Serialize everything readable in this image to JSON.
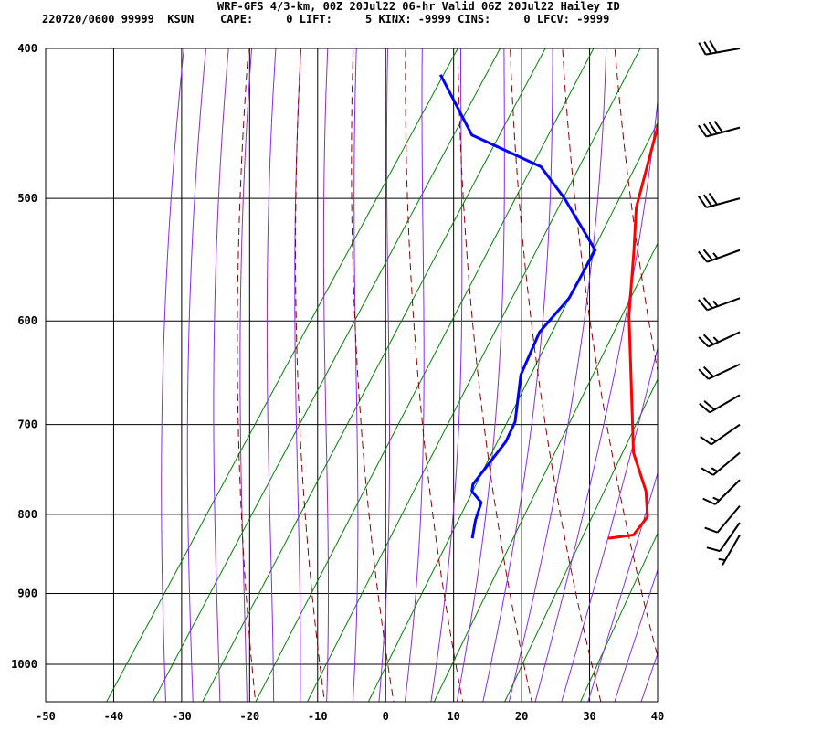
{
  "header": {
    "line1": "WRF-GFS 4/3-km, 00Z 20Jul22 06-hr Valid 06Z 20Jul22 Hailey ID",
    "line2": "220720/0600 99999  KSUN    CAPE:     0 LIFT:     5 KINX: -9999 CINS:     0 LFCV: -9999"
  },
  "colors": {
    "temperature": "#ff0000",
    "dewpoint": "#0000ff",
    "isotherm_grid": "#000000",
    "dry_adiabat": "#8b0000",
    "moist_adiabat": "#8a2be2",
    "mixing_ratio": "#008000"
  },
  "chart_data": {
    "type": "line",
    "subtype": "skew-T log-P sounding",
    "x_ticks": [
      -50,
      -40,
      -30,
      -20,
      -10,
      0,
      10,
      20,
      30,
      40
    ],
    "y_ticks": [
      400,
      500,
      600,
      700,
      800,
      900,
      1000
    ],
    "xlim": [
      -50,
      40
    ],
    "ylim": [
      1050,
      400
    ],
    "y_scale": "log",
    "grid": true,
    "series": [
      {
        "key": "temperature",
        "points": [
          [
            -17.9,
            403
          ],
          [
            -13.6,
            445
          ],
          [
            -10.5,
            485
          ],
          [
            -8.9,
            507
          ],
          [
            -5.3,
            540
          ],
          [
            0,
            595
          ],
          [
            6.8,
            660
          ],
          [
            13.4,
            730
          ],
          [
            18.8,
            773
          ],
          [
            21.4,
            803
          ],
          [
            21.0,
            825
          ],
          [
            17.6,
            829
          ]
        ]
      },
      {
        "key": "dewpoint",
        "points": [
          [
            -50,
            416
          ],
          [
            -39.8,
            455
          ],
          [
            -26.7,
            477
          ],
          [
            -20.3,
            500
          ],
          [
            -11,
            540
          ],
          [
            -10.4,
            580
          ],
          [
            -11.6,
            610
          ],
          [
            -10.4,
            650
          ],
          [
            -6.9,
            697
          ],
          [
            -6.4,
            718
          ],
          [
            -7.3,
            765
          ],
          [
            -6.8,
            773
          ],
          [
            -4.4,
            786
          ],
          [
            -3.6,
            807
          ],
          [
            -2.4,
            829
          ]
        ]
      }
    ],
    "wind_barbs": [
      {
        "p": 400,
        "dir_deg": 260,
        "speed_kt": 30
      },
      {
        "p": 450,
        "dir_deg": 255,
        "speed_kt": 40
      },
      {
        "p": 500,
        "dir_deg": 255,
        "speed_kt": 30
      },
      {
        "p": 540,
        "dir_deg": 250,
        "speed_kt": 25
      },
      {
        "p": 580,
        "dir_deg": 250,
        "speed_kt": 25
      },
      {
        "p": 610,
        "dir_deg": 245,
        "speed_kt": 25
      },
      {
        "p": 640,
        "dir_deg": 245,
        "speed_kt": 20
      },
      {
        "p": 670,
        "dir_deg": 240,
        "speed_kt": 20
      },
      {
        "p": 700,
        "dir_deg": 235,
        "speed_kt": 15
      },
      {
        "p": 730,
        "dir_deg": 230,
        "speed_kt": 15
      },
      {
        "p": 760,
        "dir_deg": 225,
        "speed_kt": 15
      },
      {
        "p": 790,
        "dir_deg": 220,
        "speed_kt": 10
      },
      {
        "p": 810,
        "dir_deg": 215,
        "speed_kt": 10
      },
      {
        "p": 825,
        "dir_deg": 210,
        "speed_kt": 5
      }
    ]
  }
}
